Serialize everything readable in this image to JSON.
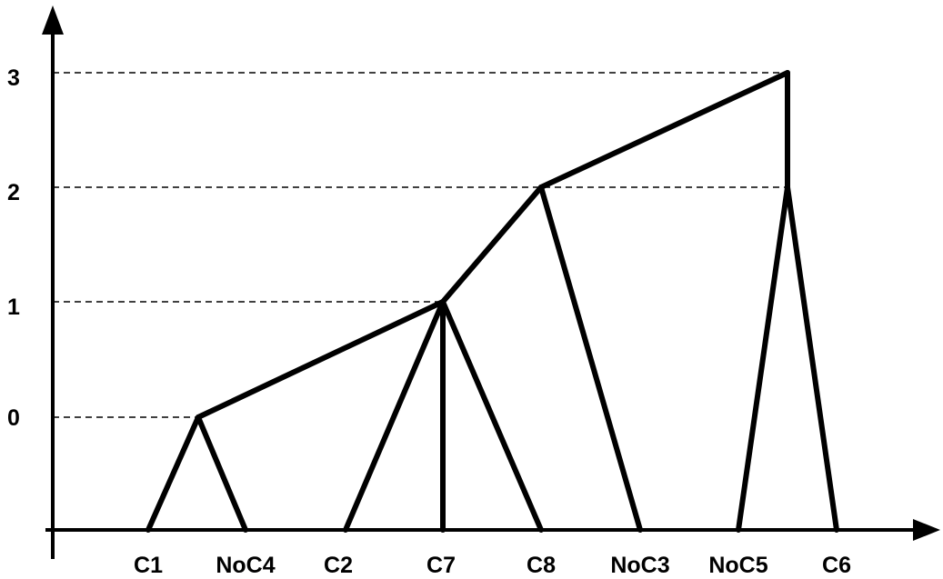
{
  "y_ticks": [
    "0",
    "1",
    "2",
    "3"
  ],
  "leaves": [
    "C1",
    "NoC4",
    "C2",
    "C7",
    "C8",
    "NoC3",
    "NoC5",
    "C6"
  ],
  "dendrogram": {
    "levels": [
      0,
      1,
      2,
      3
    ],
    "nodes": [
      {
        "id": "n0",
        "level": 0,
        "children": [
          "C1",
          "NoC4"
        ]
      },
      {
        "id": "n1",
        "level": 1,
        "children": [
          "n0",
          "C2",
          "C7",
          "C8"
        ]
      },
      {
        "id": "n2",
        "level": 2,
        "children": [
          "n1",
          "NoC3"
        ]
      },
      {
        "id": "n2b",
        "level": 2,
        "children": [
          "NoC5",
          "C6"
        ]
      },
      {
        "id": "n3",
        "level": 3,
        "children": [
          "n2",
          "n2b"
        ]
      }
    ]
  }
}
